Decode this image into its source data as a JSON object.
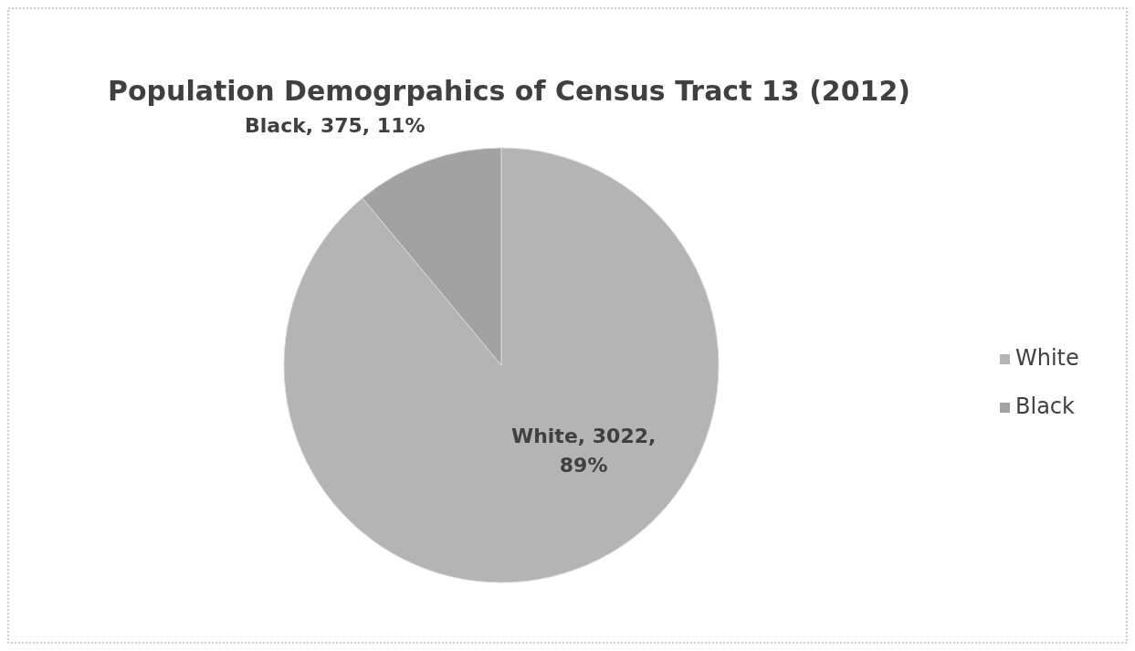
{
  "chart_data": {
    "type": "pie",
    "title": "Population  Demogrpahics of Census Tract 13 (2012)",
    "categories": [
      "White",
      "Black"
    ],
    "values": [
      3022,
      375
    ],
    "colors": [
      "#b4b4b4",
      "#a2a2a2"
    ],
    "value_labels": [
      "White, 3022, 89%",
      "Black, 375, 11%"
    ],
    "legend": "right"
  }
}
